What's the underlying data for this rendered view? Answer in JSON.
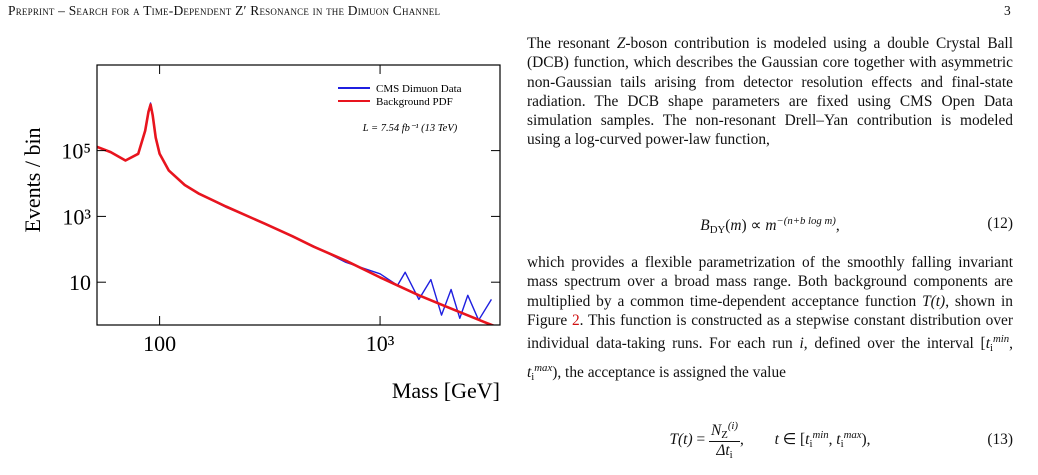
{
  "header": {
    "title": "Preprint – Search for a Time-Dependent Z′ Resonance in the Dimuon Channel",
    "page": "3"
  },
  "chart_data": {
    "type": "line",
    "xlabel": "Mass [GeV]",
    "ylabel": "Events / bin",
    "xscale": "log",
    "yscale": "log",
    "legend": "upper right",
    "annotation": "L = 7.54 fb⁻¹ (13 TeV)",
    "xlim": [
      52,
      3500
    ],
    "ylim": [
      0.5,
      40000000
    ],
    "xticks": [
      100,
      {
        "value": 1000,
        "label": "10³"
      }
    ],
    "yticks": [
      10,
      {
        "value": 1000,
        "label": "10³"
      },
      {
        "value": 100000,
        "label": "10⁵"
      }
    ],
    "series": [
      {
        "name": "CMS Dimuon Data",
        "color": "#1f1fe0",
        "x": [
          52,
          60,
          70,
          80,
          86,
          89,
          91,
          93,
          96,
          100,
          110,
          130,
          150,
          200,
          300,
          400,
          500,
          700,
          1000,
          1200,
          1300,
          1500,
          1700,
          1900,
          2100,
          2300,
          2500,
          2800,
          3200
        ],
        "values": [
          130000,
          90000,
          50000,
          80000,
          420000,
          1600000,
          2800000,
          1300000,
          260000,
          80000,
          25000,
          9200,
          5000,
          1900,
          620,
          240,
          125,
          40,
          18,
          8,
          20,
          3,
          12,
          1,
          6,
          0.8,
          4,
          0.7,
          3
        ]
      },
      {
        "name": "Background PDF",
        "color": "#e8141e",
        "x": [
          52,
          60,
          70,
          80,
          86,
          89,
          91,
          93,
          96,
          100,
          110,
          130,
          150,
          200,
          300,
          400,
          500,
          700,
          1000,
          1500,
          2000,
          3000,
          3500
        ],
        "values": [
          130000,
          90000,
          50000,
          80000,
          400000,
          1500000,
          2500000,
          1200000,
          250000,
          80000,
          25000,
          9000,
          5000,
          2000,
          600,
          250,
          120,
          45,
          14,
          4,
          1.8,
          0.6,
          0.4
        ]
      }
    ]
  },
  "paragraph1": [
    {
      "text": "The resonant "
    },
    {
      "text": "Z",
      "style": "italic"
    },
    {
      "text": "-boson contribution is modeled using a double Crystal Ball (DCB) function, which describes the Gaussian core together with asymmetric non-Gaussian tails arising from detector resolution effects and final-state radiation. The DCB shape parameters are fixed using CMS Open Data simulation samples. The non-resonant Drell–Yan contribution is modeled using a log-curved power-law function,"
    }
  ],
  "equation12": {
    "parts": [
      {
        "text": "B",
        "style": "italic"
      },
      {
        "text": "DY",
        "style": "sub"
      },
      {
        "text": "("
      },
      {
        "text": "m",
        "style": "italic"
      },
      {
        "text": ") ∝ "
      },
      {
        "text": "m",
        "style": "italic"
      },
      {
        "text": "−(n+b log m)",
        "style": "sup"
      },
      {
        "text": ","
      }
    ],
    "number": "(12)"
  },
  "paragraph2": [
    {
      "text": "which provides a flexible parametrization of the smoothly falling invariant mass spectrum over a broad mass range. Both background components are multiplied by a common time-dependent acceptance function "
    },
    {
      "text": "T(t)",
      "style": "italic"
    },
    {
      "text": ", shown in Figure "
    },
    {
      "text": "2",
      "style": "link"
    },
    {
      "text": ". This function is constructed as a stepwise constant distribution over individual data-taking runs. For each run "
    },
    {
      "text": "i",
      "style": "italic"
    },
    {
      "text": ", defined over the interval ["
    },
    {
      "text": "t",
      "style": "italic"
    },
    {
      "text": "i",
      "style": "sub"
    },
    {
      "text": "min",
      "style": "sup"
    },
    {
      "text": ", "
    },
    {
      "text": "t",
      "style": "italic"
    },
    {
      "text": "i",
      "style": "sub"
    },
    {
      "text": "max",
      "style": "sup"
    },
    {
      "text": "), the acceptance is assigned the value"
    }
  ],
  "equation13": {
    "lhs": [
      {
        "text": "T(t)",
        "style": "italic"
      },
      {
        "text": " = "
      }
    ],
    "numerator": [
      {
        "text": "N",
        "style": "italic"
      },
      {
        "text": "Z",
        "style": "sub"
      },
      {
        "text": "(i)",
        "style": "sup"
      }
    ],
    "denominator": [
      {
        "text": "Δt",
        "style": "italic"
      },
      {
        "text": "i",
        "style": "sub"
      }
    ],
    "rest": [
      {
        "text": ",        "
      },
      {
        "text": "t",
        "style": "italic"
      },
      {
        "text": " ∈ ["
      },
      {
        "text": "t",
        "style": "italic"
      },
      {
        "text": "i",
        "style": "sub"
      },
      {
        "text": "min",
        "style": "sup"
      },
      {
        "text": ", "
      },
      {
        "text": "t",
        "style": "italic"
      },
      {
        "text": "i",
        "style": "sub"
      },
      {
        "text": "max",
        "style": "sup"
      },
      {
        "text": "),"
      }
    ],
    "number": "(13)"
  }
}
